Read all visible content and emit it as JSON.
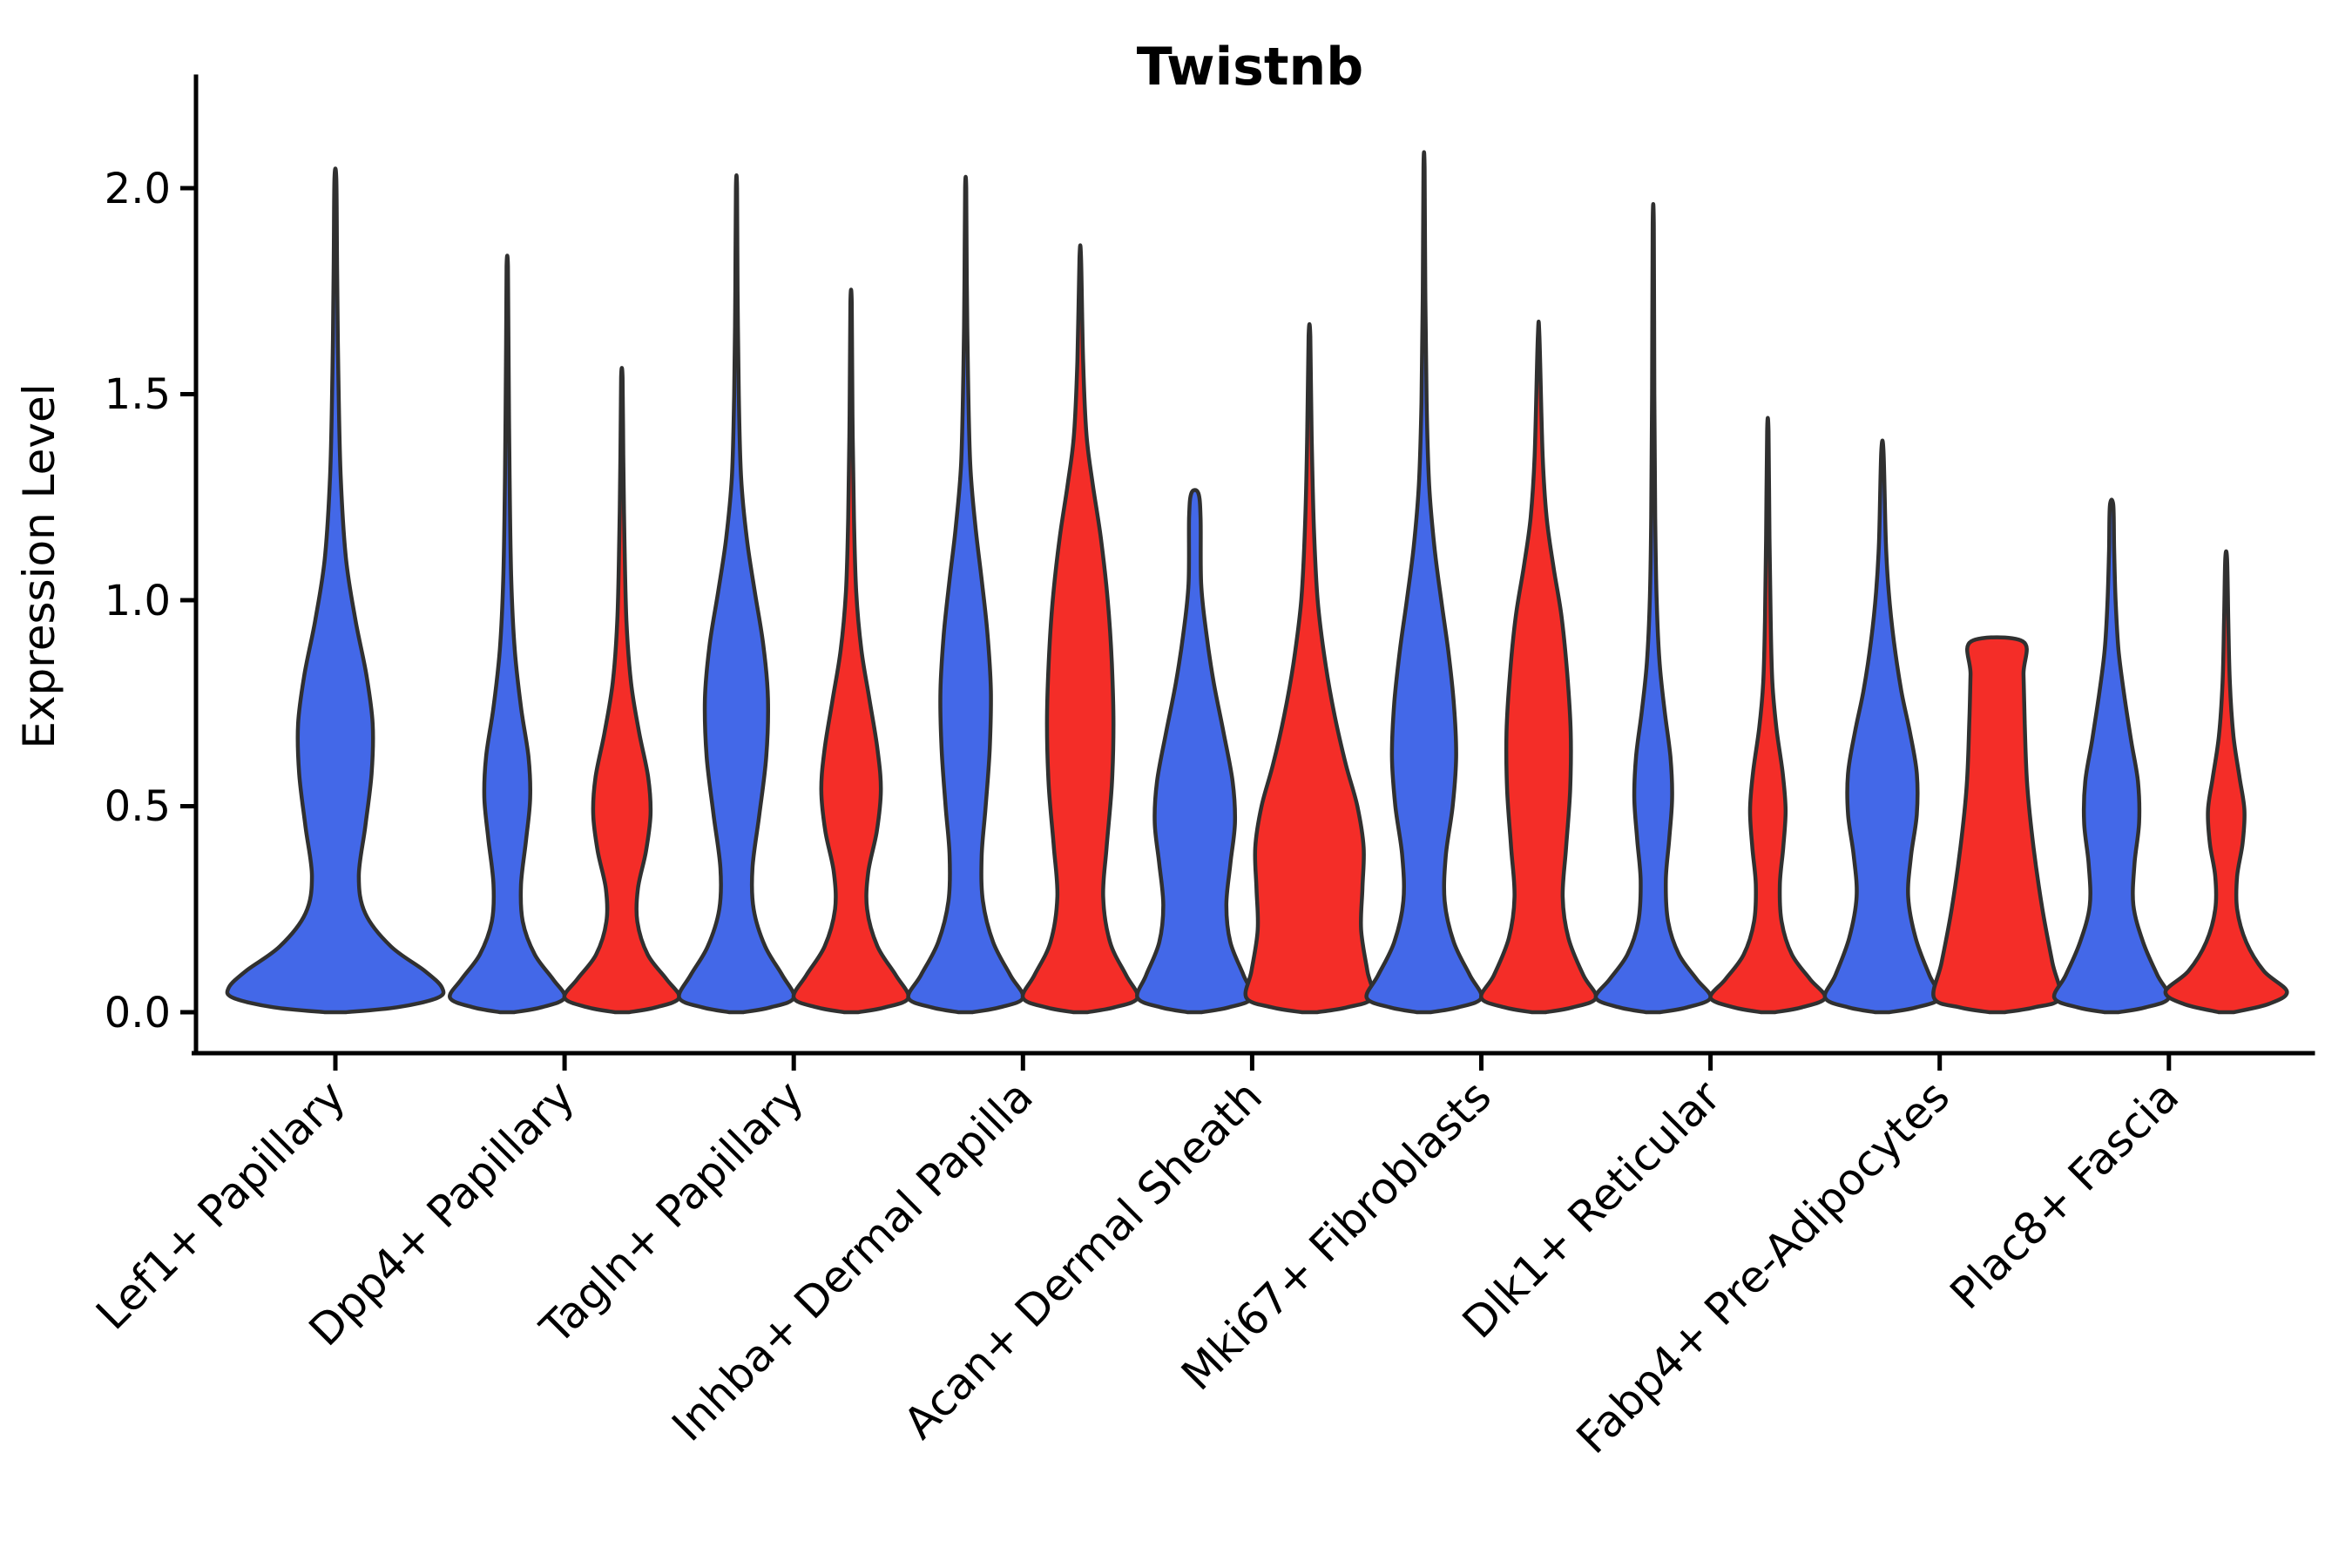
{
  "figure": {
    "title": "Twistnb",
    "background": "#ffffff"
  },
  "chart_data": {
    "type": "violin",
    "title": "Twistnb",
    "ylabel": "Expression Level",
    "xlabel": "",
    "ylim": [
      0,
      2.1
    ],
    "ytick_labels": [
      "0.0",
      "0.5",
      "1.0",
      "1.5",
      "2.0"
    ],
    "ytick_values": [
      0.0,
      0.5,
      1.0,
      1.5,
      2.0
    ],
    "grid": false,
    "legend": "none",
    "x_label_rotation_deg": 45,
    "categories": [
      "Lef1+ Papillary",
      "Dpp4+ Papillary",
      "Tagln+ Papillary",
      "Inhba+ Dermal Papilla",
      "Acan+ Dermal Sheath",
      "Mki67+ Fibroblasts",
      "Dlk1+ Reticular",
      "Fabp4+ Pre-Adipocytes",
      "Plac8+ Fascia"
    ],
    "colors": {
      "blue": "#4368E8",
      "red": "#F42D28",
      "edge": "#303030"
    },
    "violins": [
      {
        "category_index": 0,
        "color": "blue",
        "offset": 0,
        "rel_width": 0.93,
        "max": 2.02,
        "flat_top": false,
        "profile": [
          [
            0,
            0.1
          ],
          [
            0.012,
            0.58
          ],
          [
            0.035,
            0.96
          ],
          [
            0.06,
            1.0
          ],
          [
            0.1,
            0.84
          ],
          [
            0.16,
            0.52
          ],
          [
            0.24,
            0.28
          ],
          [
            0.33,
            0.22
          ],
          [
            0.45,
            0.28
          ],
          [
            0.58,
            0.34
          ],
          [
            0.7,
            0.35
          ],
          [
            0.82,
            0.29
          ],
          [
            0.95,
            0.19
          ],
          [
            1.1,
            0.1
          ],
          [
            1.3,
            0.05
          ],
          [
            1.55,
            0.028
          ],
          [
            1.8,
            0.016
          ],
          [
            2.02,
            0.009
          ]
        ]
      },
      {
        "category_index": 1,
        "color": "blue",
        "offset": -0.25,
        "rel_width": 0.5,
        "max": 1.81,
        "flat_top": false,
        "profile": [
          [
            0,
            0.12
          ],
          [
            0.012,
            0.6
          ],
          [
            0.035,
            1.0
          ],
          [
            0.08,
            0.8
          ],
          [
            0.14,
            0.48
          ],
          [
            0.22,
            0.27
          ],
          [
            0.31,
            0.24
          ],
          [
            0.42,
            0.33
          ],
          [
            0.52,
            0.4
          ],
          [
            0.62,
            0.37
          ],
          [
            0.74,
            0.24
          ],
          [
            0.88,
            0.13
          ],
          [
            1.05,
            0.07
          ],
          [
            1.3,
            0.04
          ],
          [
            1.6,
            0.022
          ],
          [
            1.81,
            0.012
          ]
        ]
      },
      {
        "category_index": 1,
        "color": "red",
        "offset": 0.25,
        "rel_width": 0.5,
        "max": 1.54,
        "flat_top": false,
        "profile": [
          [
            0,
            0.12
          ],
          [
            0.012,
            0.6
          ],
          [
            0.035,
            1.0
          ],
          [
            0.08,
            0.78
          ],
          [
            0.14,
            0.45
          ],
          [
            0.22,
            0.27
          ],
          [
            0.3,
            0.28
          ],
          [
            0.39,
            0.42
          ],
          [
            0.48,
            0.5
          ],
          [
            0.57,
            0.46
          ],
          [
            0.68,
            0.3
          ],
          [
            0.8,
            0.16
          ],
          [
            0.95,
            0.08
          ],
          [
            1.15,
            0.045
          ],
          [
            1.35,
            0.025
          ],
          [
            1.54,
            0.013
          ]
        ]
      },
      {
        "category_index": 2,
        "color": "blue",
        "offset": -0.25,
        "rel_width": 0.5,
        "max": 2.0,
        "flat_top": false,
        "profile": [
          [
            0,
            0.12
          ],
          [
            0.012,
            0.6
          ],
          [
            0.035,
            1.0
          ],
          [
            0.09,
            0.8
          ],
          [
            0.16,
            0.5
          ],
          [
            0.25,
            0.3
          ],
          [
            0.35,
            0.28
          ],
          [
            0.48,
            0.4
          ],
          [
            0.62,
            0.52
          ],
          [
            0.76,
            0.55
          ],
          [
            0.89,
            0.47
          ],
          [
            1.02,
            0.32
          ],
          [
            1.15,
            0.18
          ],
          [
            1.3,
            0.08
          ],
          [
            1.5,
            0.04
          ],
          [
            1.75,
            0.02
          ],
          [
            2.0,
            0.01
          ]
        ]
      },
      {
        "category_index": 2,
        "color": "red",
        "offset": 0.25,
        "rel_width": 0.5,
        "max": 1.72,
        "flat_top": false,
        "profile": [
          [
            0,
            0.12
          ],
          [
            0.012,
            0.6
          ],
          [
            0.035,
            1.0
          ],
          [
            0.09,
            0.78
          ],
          [
            0.16,
            0.46
          ],
          [
            0.25,
            0.28
          ],
          [
            0.34,
            0.3
          ],
          [
            0.44,
            0.45
          ],
          [
            0.54,
            0.52
          ],
          [
            0.64,
            0.46
          ],
          [
            0.76,
            0.32
          ],
          [
            0.88,
            0.18
          ],
          [
            1.02,
            0.09
          ],
          [
            1.2,
            0.05
          ],
          [
            1.45,
            0.025
          ],
          [
            1.72,
            0.012
          ]
        ]
      },
      {
        "category_index": 3,
        "color": "blue",
        "offset": -0.25,
        "rel_width": 0.5,
        "max": 2.0,
        "flat_top": false,
        "profile": [
          [
            0,
            0.12
          ],
          [
            0.012,
            0.6
          ],
          [
            0.035,
            1.0
          ],
          [
            0.09,
            0.78
          ],
          [
            0.17,
            0.48
          ],
          [
            0.27,
            0.3
          ],
          [
            0.38,
            0.28
          ],
          [
            0.5,
            0.35
          ],
          [
            0.64,
            0.42
          ],
          [
            0.78,
            0.44
          ],
          [
            0.92,
            0.38
          ],
          [
            1.05,
            0.28
          ],
          [
            1.18,
            0.17
          ],
          [
            1.33,
            0.08
          ],
          [
            1.55,
            0.04
          ],
          [
            1.78,
            0.02
          ],
          [
            2.0,
            0.01
          ]
        ]
      },
      {
        "category_index": 3,
        "color": "red",
        "offset": 0.25,
        "rel_width": 0.5,
        "max": 1.83,
        "flat_top": false,
        "profile": [
          [
            0,
            0.12
          ],
          [
            0.012,
            0.6
          ],
          [
            0.035,
            1.0
          ],
          [
            0.09,
            0.8
          ],
          [
            0.17,
            0.52
          ],
          [
            0.28,
            0.4
          ],
          [
            0.4,
            0.46
          ],
          [
            0.55,
            0.55
          ],
          [
            0.7,
            0.58
          ],
          [
            0.85,
            0.55
          ],
          [
            1.0,
            0.48
          ],
          [
            1.15,
            0.36
          ],
          [
            1.28,
            0.22
          ],
          [
            1.4,
            0.11
          ],
          [
            1.58,
            0.05
          ],
          [
            1.83,
            0.014
          ]
        ]
      },
      {
        "category_index": 4,
        "color": "blue",
        "offset": -0.25,
        "rel_width": 0.5,
        "max": 1.26,
        "flat_top": false,
        "profile": [
          [
            0,
            0.12
          ],
          [
            0.012,
            0.6
          ],
          [
            0.035,
            1.0
          ],
          [
            0.09,
            0.85
          ],
          [
            0.17,
            0.62
          ],
          [
            0.26,
            0.55
          ],
          [
            0.36,
            0.62
          ],
          [
            0.46,
            0.7
          ],
          [
            0.56,
            0.66
          ],
          [
            0.68,
            0.5
          ],
          [
            0.8,
            0.33
          ],
          [
            0.92,
            0.2
          ],
          [
            1.04,
            0.11
          ],
          [
            1.2,
            0.1
          ],
          [
            1.26,
            0.06
          ]
        ]
      },
      {
        "category_index": 4,
        "color": "red",
        "offset": 0.25,
        "rel_width": 0.55,
        "max": 1.64,
        "flat_top": false,
        "profile": [
          [
            0,
            0.12
          ],
          [
            0.012,
            0.6
          ],
          [
            0.035,
            1.0
          ],
          [
            0.1,
            0.92
          ],
          [
            0.2,
            0.82
          ],
          [
            0.3,
            0.84
          ],
          [
            0.4,
            0.86
          ],
          [
            0.5,
            0.76
          ],
          [
            0.6,
            0.58
          ],
          [
            0.72,
            0.4
          ],
          [
            0.85,
            0.25
          ],
          [
            1.0,
            0.13
          ],
          [
            1.18,
            0.07
          ],
          [
            1.4,
            0.035
          ],
          [
            1.64,
            0.014
          ]
        ]
      },
      {
        "category_index": 5,
        "color": "blue",
        "offset": -0.25,
        "rel_width": 0.5,
        "max": 2.05,
        "flat_top": false,
        "profile": [
          [
            0,
            0.12
          ],
          [
            0.012,
            0.6
          ],
          [
            0.035,
            1.0
          ],
          [
            0.09,
            0.8
          ],
          [
            0.17,
            0.52
          ],
          [
            0.27,
            0.36
          ],
          [
            0.38,
            0.38
          ],
          [
            0.5,
            0.5
          ],
          [
            0.62,
            0.56
          ],
          [
            0.75,
            0.52
          ],
          [
            0.88,
            0.42
          ],
          [
            1.0,
            0.3
          ],
          [
            1.13,
            0.18
          ],
          [
            1.28,
            0.09
          ],
          [
            1.48,
            0.045
          ],
          [
            1.75,
            0.022
          ],
          [
            2.05,
            0.01
          ]
        ]
      },
      {
        "category_index": 5,
        "color": "red",
        "offset": 0.25,
        "rel_width": 0.5,
        "max": 1.64,
        "flat_top": false,
        "profile": [
          [
            0,
            0.12
          ],
          [
            0.012,
            0.6
          ],
          [
            0.035,
            1.0
          ],
          [
            0.09,
            0.78
          ],
          [
            0.18,
            0.52
          ],
          [
            0.28,
            0.42
          ],
          [
            0.4,
            0.48
          ],
          [
            0.54,
            0.55
          ],
          [
            0.68,
            0.56
          ],
          [
            0.82,
            0.5
          ],
          [
            0.96,
            0.4
          ],
          [
            1.08,
            0.26
          ],
          [
            1.2,
            0.14
          ],
          [
            1.35,
            0.07
          ],
          [
            1.64,
            0.014
          ]
        ]
      },
      {
        "category_index": 6,
        "color": "blue",
        "offset": -0.25,
        "rel_width": 0.5,
        "max": 1.91,
        "flat_top": false,
        "profile": [
          [
            0,
            0.12
          ],
          [
            0.012,
            0.6
          ],
          [
            0.035,
            1.0
          ],
          [
            0.08,
            0.76
          ],
          [
            0.14,
            0.45
          ],
          [
            0.22,
            0.26
          ],
          [
            0.32,
            0.22
          ],
          [
            0.42,
            0.28
          ],
          [
            0.52,
            0.33
          ],
          [
            0.62,
            0.3
          ],
          [
            0.73,
            0.2
          ],
          [
            0.85,
            0.11
          ],
          [
            1.0,
            0.06
          ],
          [
            1.2,
            0.035
          ],
          [
            1.5,
            0.02
          ],
          [
            1.91,
            0.01
          ]
        ]
      },
      {
        "category_index": 6,
        "color": "red",
        "offset": 0.25,
        "rel_width": 0.5,
        "max": 1.41,
        "flat_top": false,
        "profile": [
          [
            0,
            0.12
          ],
          [
            0.012,
            0.6
          ],
          [
            0.035,
            1.0
          ],
          [
            0.08,
            0.74
          ],
          [
            0.14,
            0.42
          ],
          [
            0.22,
            0.24
          ],
          [
            0.31,
            0.21
          ],
          [
            0.4,
            0.27
          ],
          [
            0.49,
            0.31
          ],
          [
            0.58,
            0.26
          ],
          [
            0.69,
            0.15
          ],
          [
            0.8,
            0.08
          ],
          [
            0.95,
            0.05
          ],
          [
            1.15,
            0.03
          ],
          [
            1.41,
            0.012
          ]
        ]
      },
      {
        "category_index": 7,
        "color": "blue",
        "offset": -0.25,
        "rel_width": 0.5,
        "max": 1.36,
        "flat_top": false,
        "profile": [
          [
            0,
            0.12
          ],
          [
            0.012,
            0.6
          ],
          [
            0.035,
            1.0
          ],
          [
            0.09,
            0.82
          ],
          [
            0.18,
            0.58
          ],
          [
            0.28,
            0.45
          ],
          [
            0.38,
            0.5
          ],
          [
            0.48,
            0.6
          ],
          [
            0.58,
            0.6
          ],
          [
            0.68,
            0.48
          ],
          [
            0.78,
            0.33
          ],
          [
            0.9,
            0.2
          ],
          [
            1.02,
            0.11
          ],
          [
            1.14,
            0.06
          ],
          [
            1.36,
            0.02
          ]
        ]
      },
      {
        "category_index": 7,
        "color": "red",
        "offset": 0.25,
        "rel_width": 0.55,
        "max": 0.9,
        "flat_top": true,
        "profile": [
          [
            0,
            0.12
          ],
          [
            0.012,
            0.6
          ],
          [
            0.035,
            1.0
          ],
          [
            0.12,
            0.88
          ],
          [
            0.25,
            0.72
          ],
          [
            0.4,
            0.58
          ],
          [
            0.55,
            0.48
          ],
          [
            0.7,
            0.44
          ],
          [
            0.82,
            0.42
          ],
          [
            0.9,
            0.41
          ]
        ]
      },
      {
        "category_index": 8,
        "color": "blue",
        "offset": -0.25,
        "rel_width": 0.5,
        "max": 1.23,
        "flat_top": false,
        "profile": [
          [
            0,
            0.12
          ],
          [
            0.012,
            0.6
          ],
          [
            0.035,
            1.0
          ],
          [
            0.09,
            0.8
          ],
          [
            0.17,
            0.55
          ],
          [
            0.26,
            0.38
          ],
          [
            0.36,
            0.4
          ],
          [
            0.46,
            0.48
          ],
          [
            0.56,
            0.46
          ],
          [
            0.66,
            0.34
          ],
          [
            0.77,
            0.22
          ],
          [
            0.88,
            0.12
          ],
          [
            1.0,
            0.07
          ],
          [
            1.12,
            0.045
          ],
          [
            1.23,
            0.03
          ]
        ]
      },
      {
        "category_index": 8,
        "color": "red",
        "offset": 0.25,
        "rel_width": 0.53,
        "max": 1.1,
        "flat_top": false,
        "profile": [
          [
            0,
            0.12
          ],
          [
            0.02,
            0.7
          ],
          [
            0.05,
            1.0
          ],
          [
            0.1,
            0.62
          ],
          [
            0.17,
            0.33
          ],
          [
            0.25,
            0.18
          ],
          [
            0.33,
            0.18
          ],
          [
            0.41,
            0.27
          ],
          [
            0.49,
            0.3
          ],
          [
            0.57,
            0.22
          ],
          [
            0.67,
            0.12
          ],
          [
            0.8,
            0.06
          ],
          [
            0.95,
            0.035
          ],
          [
            1.1,
            0.015
          ]
        ]
      }
    ]
  }
}
